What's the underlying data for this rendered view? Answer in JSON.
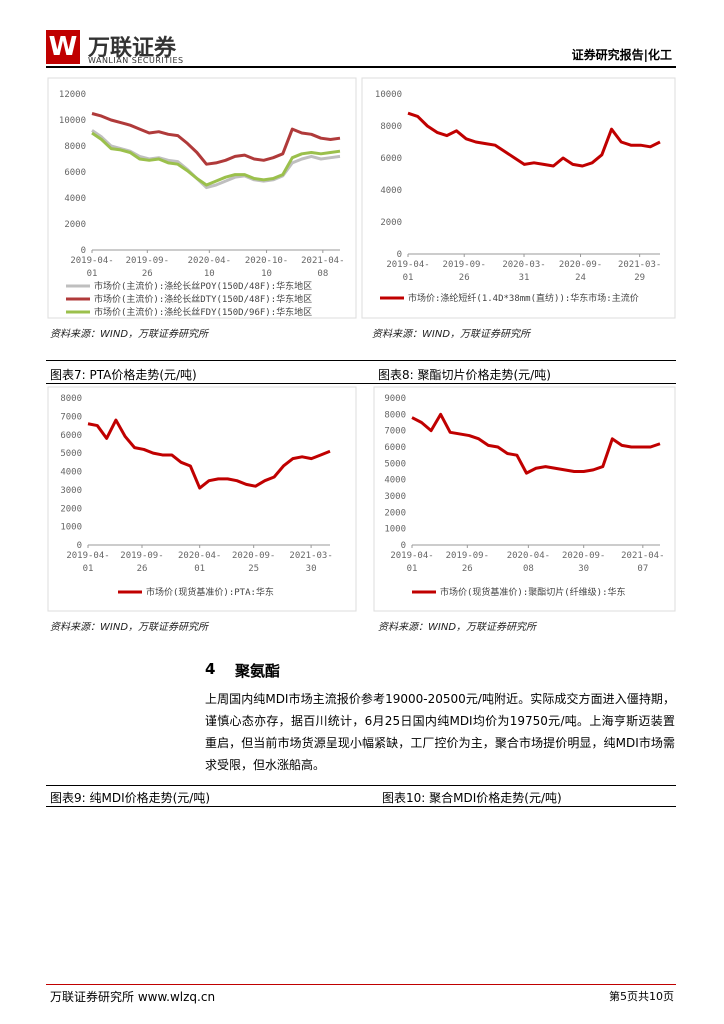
{
  "header": {
    "logo": "万联证券",
    "logo_en": "WANLIAN SECURITIES",
    "report_type": "证券研究报告|化工"
  },
  "chart_data": [
    {
      "type": "line",
      "ylim": [
        0,
        12000
      ],
      "yticks": [
        0,
        2000,
        4000,
        6000,
        8000,
        10000,
        12000
      ],
      "xlim": [
        0,
        26
      ],
      "xticks": [
        {
          "value": 0,
          "label": [
            "2019-04-",
            "01"
          ]
        },
        {
          "value": 5.8,
          "label": [
            "2019-09-",
            "26"
          ]
        },
        {
          "value": 12.3,
          "label": [
            "2020-04-",
            "10"
          ]
        },
        {
          "value": 18.3,
          "label": [
            "2020-10-",
            "10"
          ]
        },
        {
          "value": 24.2,
          "label": [
            "2021-04-",
            "08"
          ]
        }
      ],
      "series": [
        {
          "name": "市场价(主流价):涤纶长丝POY(150D/48F):华东地区",
          "color": "#bfbfbf",
          "values": [
            9200,
            8700,
            8000,
            7800,
            7600,
            7200,
            7000,
            7100,
            6900,
            6800,
            6200,
            5500,
            4800,
            5000,
            5300,
            5600,
            5700,
            5400,
            5300,
            5400,
            5700,
            6700,
            7000,
            7200,
            7000,
            7100,
            7200
          ]
        },
        {
          "name": "市场价(主流价):涤纶长丝DTY(150D/48F):华东地区",
          "color": "#b03a3a",
          "values": [
            10500,
            10300,
            10000,
            9800,
            9600,
            9300,
            9000,
            9100,
            8900,
            8800,
            8200,
            7500,
            6600,
            6700,
            6900,
            7200,
            7300,
            7000,
            6900,
            7100,
            7400,
            9300,
            9000,
            8900,
            8600,
            8500,
            8600
          ]
        },
        {
          "name": "市场价(主流价):涤纶长丝FDY(150D/96F):华东地区",
          "color": "#9bc04c",
          "values": [
            9000,
            8500,
            7800,
            7700,
            7500,
            7000,
            6900,
            7000,
            6700,
            6600,
            6100,
            5500,
            5000,
            5300,
            5600,
            5800,
            5800,
            5500,
            5400,
            5500,
            5800,
            7100,
            7400,
            7500,
            7400,
            7500,
            7600
          ]
        }
      ]
    },
    {
      "type": "line",
      "ylim": [
        0,
        10000
      ],
      "yticks": [
        0,
        2000,
        4000,
        6000,
        8000,
        10000
      ],
      "xlim": [
        0,
        26
      ],
      "xticks": [
        {
          "value": 0,
          "label": [
            "2019-04-",
            "01"
          ]
        },
        {
          "value": 5.8,
          "label": [
            "2019-09-",
            "26"
          ]
        },
        {
          "value": 11.97,
          "label": [
            "2020-03-",
            "31"
          ]
        },
        {
          "value": 17.8,
          "label": [
            "2020-09-",
            "24"
          ]
        },
        {
          "value": 23.9,
          "label": [
            "2021-03-",
            "29"
          ]
        }
      ],
      "series": [
        {
          "name": "市场价:涤纶短纤(1.4D*38mm(直纺)):华东市场:主流价",
          "color": "#c00000",
          "values": [
            8800,
            8600,
            8000,
            7600,
            7400,
            7700,
            7200,
            7000,
            6900,
            6800,
            6400,
            6000,
            5600,
            5700,
            5600,
            5500,
            6000,
            5600,
            5500,
            5700,
            6200,
            7800,
            7000,
            6800,
            6800,
            6700,
            7000
          ]
        }
      ]
    },
    {
      "type": "line",
      "ylim": [
        0,
        8000
      ],
      "yticks": [
        0,
        1000,
        2000,
        3000,
        4000,
        5000,
        6000,
        7000,
        8000
      ],
      "xlim": [
        0,
        26
      ],
      "xticks": [
        {
          "value": 0,
          "label": [
            "2019-04-",
            "01"
          ]
        },
        {
          "value": 5.8,
          "label": [
            "2019-09-",
            "26"
          ]
        },
        {
          "value": 12,
          "label": [
            "2020-04-",
            "01"
          ]
        },
        {
          "value": 17.8,
          "label": [
            "2020-09-",
            "25"
          ]
        },
        {
          "value": 23.97,
          "label": [
            "2021-03-",
            "30"
          ]
        }
      ],
      "series": [
        {
          "name": "市场价(现货基准价):PTA:华东",
          "color": "#c00000",
          "values": [
            6600,
            6500,
            5800,
            6800,
            5900,
            5300,
            5200,
            5000,
            4900,
            4900,
            4500,
            4300,
            3100,
            3500,
            3600,
            3600,
            3500,
            3300,
            3200,
            3500,
            3700,
            4300,
            4700,
            4800,
            4700,
            4900,
            5100
          ]
        }
      ]
    },
    {
      "type": "line",
      "ylim": [
        0,
        9000
      ],
      "yticks": [
        0,
        1000,
        2000,
        3000,
        4000,
        5000,
        6000,
        7000,
        8000,
        9000
      ],
      "xlim": [
        0,
        26
      ],
      "xticks": [
        {
          "value": 0,
          "label": [
            "2019-04-",
            "01"
          ]
        },
        {
          "value": 5.8,
          "label": [
            "2019-09-",
            "26"
          ]
        },
        {
          "value": 12.2,
          "label": [
            "2020-04-",
            "08"
          ]
        },
        {
          "value": 18,
          "label": [
            "2020-09-",
            "30"
          ]
        },
        {
          "value": 24.2,
          "label": [
            "2021-04-",
            "07"
          ]
        }
      ],
      "series": [
        {
          "name": "市场价(现货基准价):聚酯切片(纤维级):华东",
          "color": "#c00000",
          "values": [
            7800,
            7500,
            7000,
            8000,
            6900,
            6800,
            6700,
            6500,
            6100,
            6000,
            5600,
            5500,
            4400,
            4700,
            4800,
            4700,
            4600,
            4500,
            4500,
            4600,
            4800,
            6500,
            6100,
            6000,
            6000,
            6000,
            6200
          ]
        }
      ]
    }
  ],
  "sources": [
    "资料来源：WIND，万联证券研究所",
    "资料来源：WIND，万联证券研究所",
    "资料来源：WIND，万联证券研究所",
    "资料来源：WIND，万联证券研究所"
  ],
  "captions": [
    "图表7:  PTA价格走势(元/吨)",
    "图表8:  聚酯切片价格走势(元/吨)",
    "图表9:  纯MDI价格走势(元/吨)",
    "图表10:  聚合MDI价格走势(元/吨)"
  ],
  "section": {
    "number": "4",
    "title": "聚氨酯",
    "paragraph": "上周国内纯MDI市场主流报价参考19000-20500元/吨附近。实际成交方面进入僵持期，谨慎心态亦存，据百川统计，6月25日国内纯MDI均价为19750元/吨。上海亨斯迈装置重启，但当前市场货源呈现小幅紧缺，工厂控价为主，聚合市场提价明显，纯MDI市场需求受限，但水涨船高。"
  },
  "footer": {
    "left": "万联证券研究所 www.wlzq.cn",
    "right": "第5页共10页"
  }
}
